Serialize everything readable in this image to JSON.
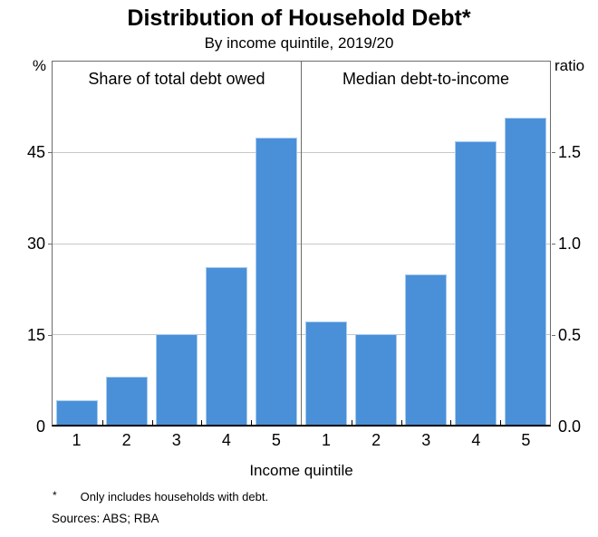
{
  "title": "Distribution of Household Debt*",
  "subtitle": "By income quintile, 2019/20",
  "axes": {
    "left_unit": "%",
    "right_unit": "ratio",
    "x_title": "Income quintile"
  },
  "footnote": {
    "marker": "*",
    "text": "Only includes households with debt."
  },
  "sources": "Sources: ABS; RBA",
  "colors": {
    "bar": "#4a90d8",
    "bar_edge": "#a7cbee",
    "grid": "#c8c8c8",
    "frame": "#6b6b6b",
    "axis": "#000000"
  },
  "chart_data": [
    {
      "type": "bar",
      "panel_title": "Share of total debt owed",
      "categories": [
        "1",
        "2",
        "3",
        "4",
        "5"
      ],
      "values": [
        4,
        8,
        15,
        26,
        47.5
      ],
      "xlabel": "Income quintile",
      "ylabel": "%",
      "ylim": [
        0,
        60
      ],
      "yticks": [
        0,
        15,
        30,
        45
      ],
      "tick_labels": [
        "45",
        "30",
        "15",
        "0"
      ],
      "axis_side": "left",
      "grid": true,
      "legend_position": "none"
    },
    {
      "type": "bar",
      "panel_title": "Median debt-to-income",
      "categories": [
        "1",
        "2",
        "3",
        "4",
        "5"
      ],
      "values": [
        0.57,
        0.5,
        0.83,
        1.56,
        1.69
      ],
      "xlabel": "Income quintile",
      "ylabel": "ratio",
      "ylim": [
        0,
        2.0
      ],
      "yticks": [
        0,
        0.5,
        1.0,
        1.5
      ],
      "tick_labels": [
        "1.5",
        "1.0",
        "0.5",
        "0.0"
      ],
      "axis_side": "right",
      "grid": true,
      "legend_position": "none"
    }
  ]
}
